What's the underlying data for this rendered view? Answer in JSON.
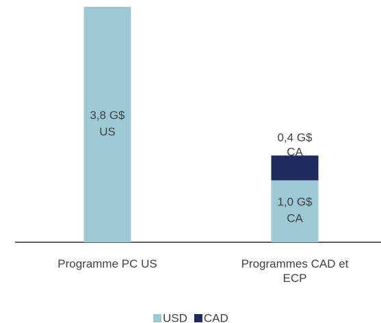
{
  "chart_data": {
    "type": "bar",
    "stacked": true,
    "categories": [
      "Programme PC US",
      "Programmes CAD et ECP"
    ],
    "series": [
      {
        "name": "USD",
        "color": "#9dc9d4",
        "values": [
          3.8,
          1.0
        ],
        "value_labels": [
          "3,8 G$ US",
          "1,0 G$ CA"
        ]
      },
      {
        "name": "CAD",
        "color": "#1f2a5c",
        "values": [
          null,
          0.4
        ],
        "value_labels": [
          null,
          "0,4 G$ CA"
        ]
      }
    ],
    "ylim": [
      0,
      3.8
    ],
    "legend": "bottom"
  }
}
